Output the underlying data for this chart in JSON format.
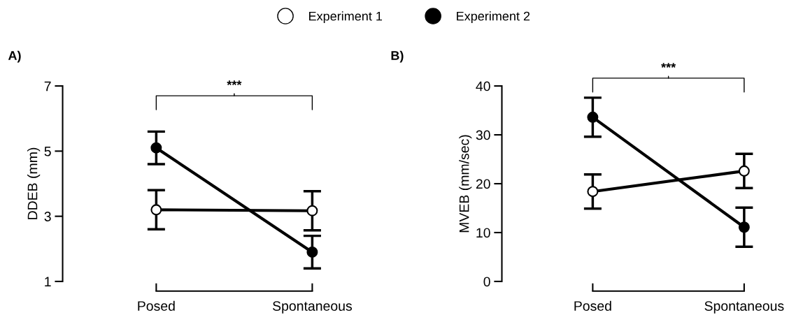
{
  "chart_data": [
    {
      "type": "line",
      "title": "A)",
      "ylabel": "DDEB (mm)",
      "categories": [
        "Posed",
        "Spontaneous"
      ],
      "ylim": [
        1,
        7
      ],
      "yticks": [
        1,
        3,
        5,
        7
      ],
      "marker": "circle",
      "legend": "top",
      "annotations": [
        "***"
      ],
      "series": [
        {
          "name": "Experiment 1",
          "color": "#000000",
          "colors": [
            "#ffffff",
            "#ffffff"
          ],
          "values": [
            3.2,
            3.17
          ],
          "errors": [
            0.6,
            0.6
          ]
        },
        {
          "name": "Experiment 2",
          "color": "#000000",
          "values": [
            5.1,
            1.9
          ],
          "errors": [
            0.5,
            0.5
          ]
        }
      ]
    },
    {
      "type": "line",
      "title": "B)",
      "ylabel": "MVEB (mm/sec)",
      "categories": [
        "Posed",
        "Spontaneous"
      ],
      "ylim": [
        0,
        40
      ],
      "yticks": [
        0,
        10,
        20,
        30,
        40
      ],
      "marker": "circle",
      "legend": "top",
      "annotations": [
        "***"
      ],
      "series": [
        {
          "name": "Experiment 1",
          "color": "#000000",
          "colors": [
            "#ffffff",
            "#ffffff"
          ],
          "values": [
            18.4,
            22.6
          ],
          "errors": [
            3.5,
            3.5
          ]
        },
        {
          "name": "Experiment 2",
          "color": "#000000",
          "values": [
            33.6,
            11.1
          ],
          "errors": [
            4,
            4
          ]
        }
      ]
    }
  ]
}
